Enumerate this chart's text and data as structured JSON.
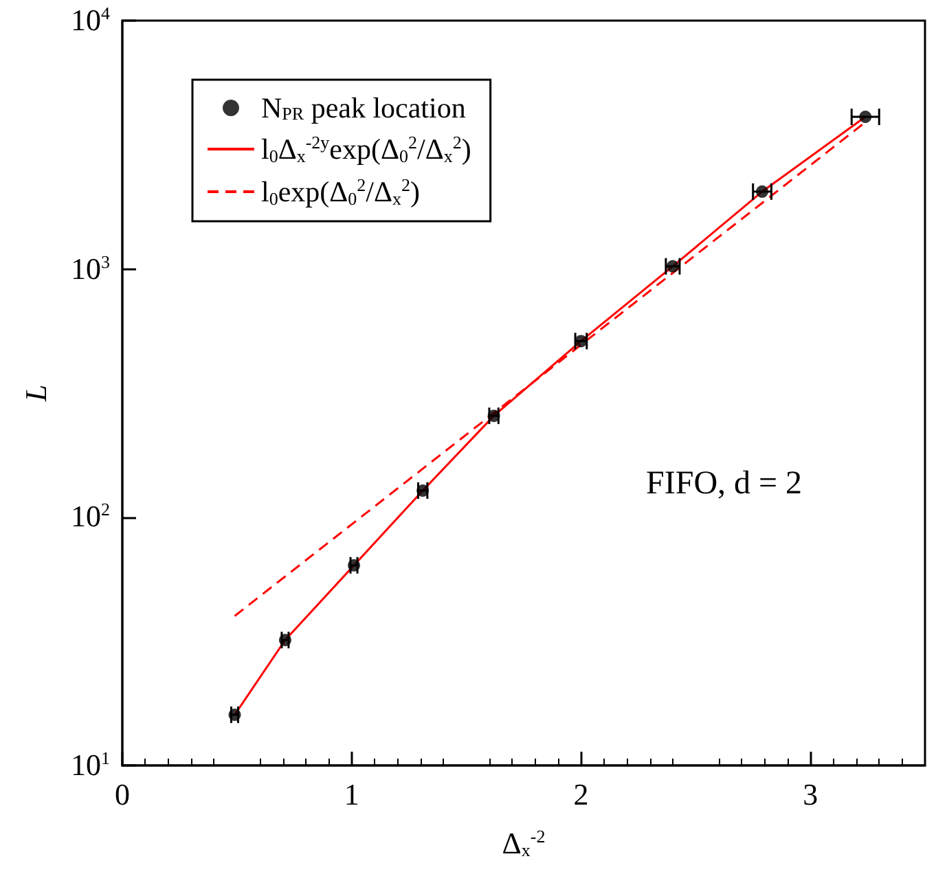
{
  "chart_data": {
    "type": "scatter",
    "xlabel": "Δ$_{x}$$^{-2}$",
    "ylabel": "L",
    "annotations": [
      "FIFO, d = 2"
    ],
    "series": [
      {
        "type": "scatter",
        "name": "N$_{PR}$ peak location",
        "color": "#000000",
        "marker": "circle",
        "x": [
          0.49,
          0.71,
          1.01,
          1.31,
          1.62,
          2.0,
          2.4,
          2.79,
          3.24
        ],
        "values": [
          16,
          32,
          64,
          128,
          256,
          512,
          1024,
          2048,
          4096
        ],
        "xerrors": [
          0.015,
          0.015,
          0.015,
          0.02,
          0.02,
          0.025,
          0.03,
          0.04,
          0.06
        ]
      },
      {
        "type": "line",
        "name": "l$_{0}$Δ$_{x}$$^{-2y}$exp(Δ$_{0}$$^{2}$/Δ$_{x}$$^{2}$)",
        "color": "#ff0000",
        "line_style": "solid",
        "x": [
          0.49,
          0.71,
          1.01,
          1.31,
          1.62,
          2.0,
          2.4,
          2.79,
          3.24
        ],
        "values": [
          16,
          32,
          64,
          128,
          256,
          512,
          1024,
          2048,
          4096
        ]
      },
      {
        "type": "line",
        "name": "l$_{0}$exp(Δ$_{0}$$^{2}$/Δ$_{x}$$^{2}$)",
        "color": "#ff0000",
        "line_style": "dashed",
        "x": [
          0.49,
          3.24
        ],
        "values": [
          40,
          3900
        ]
      }
    ],
    "xlim": [
      0,
      3.5
    ],
    "xticks": [
      0,
      1,
      2,
      3
    ],
    "log": "y",
    "ylim": [
      10,
      10000
    ],
    "yticks": [
      {
        "value": 10,
        "label": "10$^{1}$"
      },
      {
        "value": 100,
        "label": "10$^{2}$"
      },
      {
        "value": 1000,
        "label": "10$^{3}$"
      },
      {
        "value": 10000,
        "label": "10$^{4}$"
      }
    ],
    "grid": false,
    "legend": "top left"
  }
}
